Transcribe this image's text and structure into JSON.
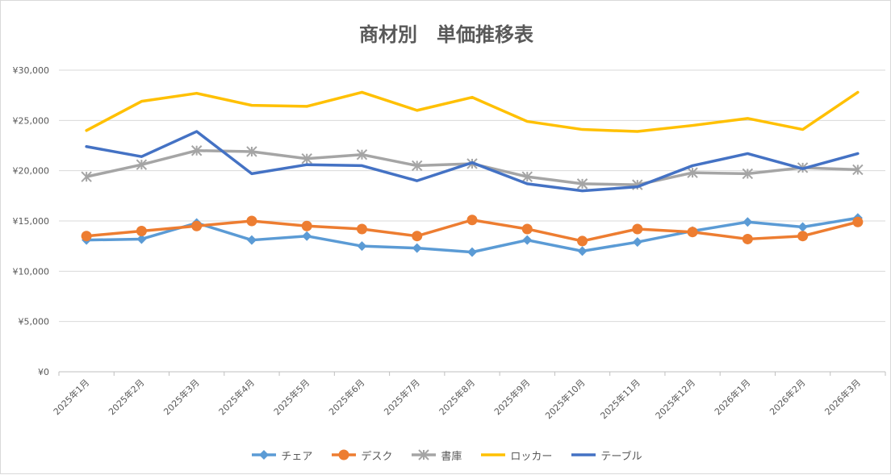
{
  "chart_data": {
    "type": "line",
    "title": "商材別　単価推移表",
    "xlabel": "",
    "ylabel": "",
    "ylim": [
      0,
      30000
    ],
    "y_ticks": [
      "¥0",
      "¥5,000",
      "¥10,000",
      "¥15,000",
      "¥20,000",
      "¥25,000",
      "¥30,000"
    ],
    "y_tick_values": [
      0,
      5000,
      10000,
      15000,
      20000,
      25000,
      30000
    ],
    "grid": true,
    "legend_position": "bottom",
    "categories": [
      "2025年1月",
      "2025年2月",
      "2025年3月",
      "2025年4月",
      "2025年5月",
      "2025年6月",
      "2025年7月",
      "2025年8月",
      "2025年9月",
      "2025年10月",
      "2025年11月",
      "2025年12月",
      "2026年1月",
      "2026年2月",
      "2026年3月"
    ],
    "series": [
      {
        "name": "チェア",
        "color": "#5B9BD5",
        "marker": "diamond",
        "values": [
          13100,
          13200,
          14800,
          13100,
          13500,
          12500,
          12300,
          11900,
          13100,
          12000,
          12900,
          14000,
          14900,
          14400,
          15300
        ]
      },
      {
        "name": "デスク",
        "color": "#ED7D31",
        "marker": "circle",
        "values": [
          13500,
          14000,
          14500,
          15000,
          14500,
          14200,
          13500,
          15100,
          14200,
          13000,
          14200,
          13900,
          13200,
          13500,
          14900
        ]
      },
      {
        "name": "書庫",
        "color": "#A5A5A5",
        "marker": "star",
        "values": [
          19400,
          20600,
          22000,
          21900,
          21200,
          21600,
          20500,
          20700,
          19400,
          18700,
          18600,
          19800,
          19700,
          20300,
          20100
        ]
      },
      {
        "name": "ロッカー",
        "color": "#FFC000",
        "marker": "none",
        "values": [
          24000,
          26900,
          27700,
          26500,
          26400,
          27800,
          26000,
          27300,
          24900,
          24100,
          23900,
          24500,
          25200,
          24100,
          27800
        ]
      },
      {
        "name": "テーブル",
        "color": "#4472C4",
        "marker": "none",
        "values": [
          22400,
          21400,
          23900,
          19700,
          20600,
          20500,
          19000,
          20800,
          18700,
          18000,
          18400,
          20500,
          21700,
          20200,
          21700
        ]
      }
    ]
  }
}
